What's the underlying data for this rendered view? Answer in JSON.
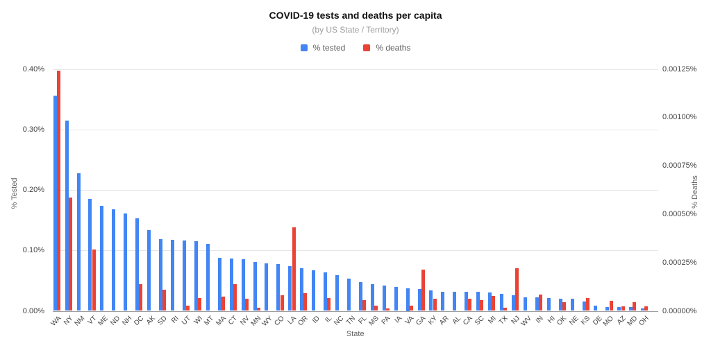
{
  "title": "COVID-19 tests and deaths per capita",
  "subtitle": "(by US State / Territory)",
  "legend": {
    "tested": {
      "label": "% tested",
      "color": "#4285f4"
    },
    "deaths": {
      "label": "% deaths",
      "color": "#ea4335"
    }
  },
  "axes": {
    "x_title": "State",
    "left_title": "% Tested",
    "right_title": "% Deaths",
    "left_ticks": [
      "0.00%",
      "0.10%",
      "0.20%",
      "0.30%",
      "0.40%"
    ],
    "right_ticks": [
      "0.00000%",
      "0.00025%",
      "0.00050%",
      "0.00075%",
      "0.00100%",
      "0.00125%"
    ],
    "grid": true
  },
  "chart_data": {
    "type": "bar",
    "title": "COVID-19 tests and deaths per capita",
    "subtitle": "(by US State / Territory)",
    "xlabel": "State",
    "legend_position": "top-center",
    "categories": [
      "WA",
      "NY",
      "NM",
      "VT",
      "ME",
      "ND",
      "NH",
      "DC",
      "AK",
      "SD",
      "RI",
      "UT",
      "WI",
      "MT",
      "MA",
      "CT",
      "NV",
      "MN",
      "WY",
      "CO",
      "LA",
      "OR",
      "ID",
      "IL",
      "NC",
      "TN",
      "FL",
      "MS",
      "PA",
      "IA",
      "VA",
      "GA",
      "KY",
      "AR",
      "AL",
      "CA",
      "SC",
      "MI",
      "TX",
      "NJ",
      "WV",
      "IN",
      "HI",
      "OK",
      "NE",
      "KS",
      "DE",
      "MO",
      "AZ",
      "MD",
      "OH"
    ],
    "series": [
      {
        "name": "% tested",
        "axis": "left",
        "color": "#4285f4",
        "ylabel": "% Tested",
        "ylim": [
          0,
          0.4
        ],
        "unit": "%",
        "values": [
          0.356,
          0.315,
          0.228,
          0.185,
          0.174,
          0.168,
          0.161,
          0.153,
          0.134,
          0.119,
          0.1175,
          0.116,
          0.1155,
          0.1105,
          0.088,
          0.086,
          0.085,
          0.081,
          0.0785,
          0.0775,
          0.0735,
          0.07,
          0.0665,
          0.064,
          0.0595,
          0.0535,
          0.047,
          0.044,
          0.0415,
          0.04,
          0.0375,
          0.0365,
          0.034,
          0.032,
          0.0315,
          0.0315,
          0.031,
          0.03,
          0.028,
          0.0255,
          0.0225,
          0.022,
          0.021,
          0.02,
          0.0195,
          0.016,
          0.0086,
          0.0068,
          0.0065,
          0.006,
          0.004
        ]
      },
      {
        "name": "% deaths",
        "axis": "right",
        "color": "#ea4335",
        "ylabel": "% Deaths",
        "ylim": [
          0,
          0.00125
        ],
        "unit": "%",
        "values": [
          0.00124,
          0.000585,
          0,
          0.000317,
          0,
          0,
          0,
          0.000138,
          0,
          0.00011,
          0,
          2.8e-05,
          6.6e-05,
          0,
          7.2e-05,
          0.000138,
          6.4e-05,
          1.5e-05,
          0,
          8e-05,
          0.00043,
          9e-05,
          0,
          6.6e-05,
          0,
          0,
          5.4e-05,
          2.8e-05,
          1.25e-05,
          0,
          2.8e-05,
          0.000212,
          6.3e-05,
          0,
          0,
          6.3e-05,
          5.7e-05,
          7.8e-05,
          1.7e-05,
          0.000221,
          0,
          8.4e-05,
          0,
          4.6e-05,
          0,
          6.6e-05,
          0,
          5.2e-05,
          2.4e-05,
          4.6e-05,
          2.4e-05
        ]
      }
    ]
  }
}
